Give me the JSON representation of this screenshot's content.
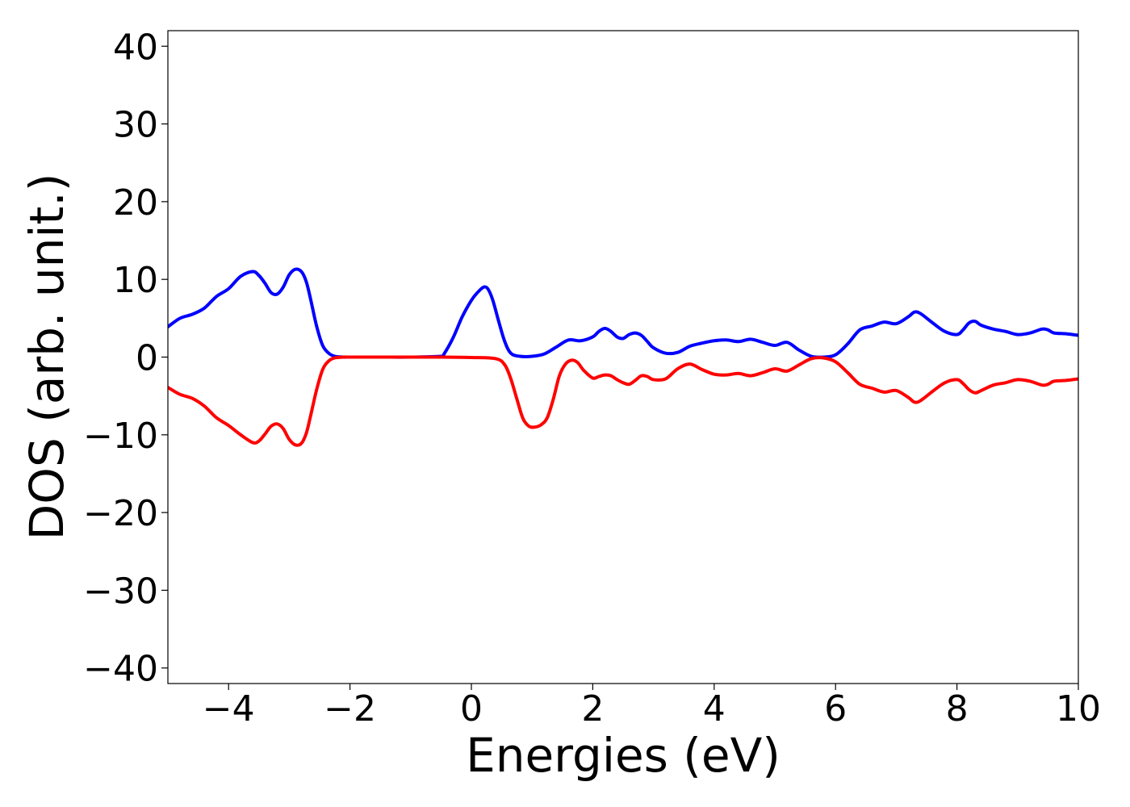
{
  "chart_data": {
    "type": "line",
    "title": "",
    "xlabel": "Energies (eV)",
    "ylabel": "DOS (arb. unit.)",
    "xlim": [
      -5,
      10
    ],
    "ylim": [
      -42,
      42
    ],
    "xticks": [
      -4,
      -2,
      0,
      2,
      4,
      6,
      8,
      10
    ],
    "yticks": [
      -40,
      -30,
      -20,
      -10,
      0,
      10,
      20,
      30,
      40
    ],
    "xtick_labels": [
      "−4",
      "−2",
      "0",
      "2",
      "4",
      "6",
      "8",
      "10"
    ],
    "ytick_labels": [
      "−40",
      "−30",
      "−20",
      "−10",
      "0",
      "10",
      "20",
      "30",
      "40"
    ],
    "grid": false,
    "legend": "none",
    "series": [
      {
        "color": "#0000ff",
        "x": [
          -5.0,
          -4.8,
          -4.6,
          -4.4,
          -4.2,
          -4.0,
          -3.8,
          -3.6,
          -3.5,
          -3.4,
          -3.3,
          -3.2,
          -3.1,
          -3.0,
          -2.9,
          -2.8,
          -2.72,
          -2.65,
          -2.55,
          -2.45,
          -2.35,
          -2.25,
          -2.1,
          -2.0,
          -1.5,
          -1.0,
          -0.5,
          -0.45,
          -0.3,
          -0.15,
          0.0,
          0.1,
          0.2,
          0.27,
          0.35,
          0.45,
          0.55,
          0.65,
          0.8,
          1.0,
          1.2,
          1.4,
          1.6,
          1.8,
          2.0,
          2.1,
          2.2,
          2.3,
          2.4,
          2.5,
          2.6,
          2.7,
          2.8,
          2.9,
          3.0,
          3.2,
          3.4,
          3.6,
          3.8,
          4.0,
          4.2,
          4.4,
          4.6,
          4.8,
          5.0,
          5.2,
          5.4,
          5.6,
          5.8,
          6.0,
          6.2,
          6.4,
          6.6,
          6.8,
          7.0,
          7.2,
          7.3,
          7.4,
          7.6,
          7.8,
          8.0,
          8.1,
          8.2,
          8.3,
          8.4,
          8.6,
          8.8,
          9.0,
          9.2,
          9.4,
          9.5,
          9.6,
          9.8,
          10.0
        ],
        "y": [
          3.9,
          5.0,
          5.5,
          6.3,
          7.8,
          8.8,
          10.4,
          11.0,
          10.5,
          9.5,
          8.3,
          8.1,
          9.0,
          10.6,
          11.3,
          11.0,
          9.7,
          7.5,
          4.0,
          1.5,
          0.5,
          0.1,
          0.0,
          0.0,
          0.0,
          0.0,
          0.1,
          0.4,
          2.5,
          5.2,
          7.3,
          8.3,
          9.0,
          8.8,
          7.4,
          4.6,
          2.0,
          0.5,
          0.1,
          0.1,
          0.4,
          1.3,
          2.2,
          2.1,
          2.6,
          3.3,
          3.7,
          3.3,
          2.6,
          2.4,
          2.9,
          3.1,
          2.8,
          2.0,
          1.2,
          0.5,
          0.6,
          1.4,
          1.8,
          2.1,
          2.2,
          2.0,
          2.3,
          1.9,
          1.5,
          1.9,
          0.9,
          0.1,
          0.0,
          0.3,
          1.7,
          3.5,
          4.0,
          4.5,
          4.3,
          5.2,
          5.8,
          5.6,
          4.4,
          3.3,
          2.9,
          3.5,
          4.4,
          4.6,
          4.1,
          3.6,
          3.3,
          2.9,
          3.1,
          3.6,
          3.5,
          3.1,
          3.0,
          2.8
        ]
      },
      {
        "color": "#ff0000",
        "x": [
          -5.0,
          -4.8,
          -4.6,
          -4.4,
          -4.2,
          -4.0,
          -3.8,
          -3.6,
          -3.5,
          -3.4,
          -3.3,
          -3.2,
          -3.1,
          -3.0,
          -2.9,
          -2.8,
          -2.72,
          -2.65,
          -2.55,
          -2.45,
          -2.35,
          -2.25,
          -2.1,
          -2.0,
          -1.5,
          -1.0,
          -0.5,
          0.0,
          0.4,
          0.55,
          0.65,
          0.75,
          0.85,
          0.95,
          1.05,
          1.15,
          1.25,
          1.35,
          1.45,
          1.55,
          1.65,
          1.75,
          1.85,
          2.0,
          2.1,
          2.2,
          2.3,
          2.4,
          2.5,
          2.6,
          2.7,
          2.8,
          2.9,
          3.0,
          3.2,
          3.4,
          3.6,
          3.8,
          4.0,
          4.2,
          4.4,
          4.6,
          4.8,
          5.0,
          5.2,
          5.4,
          5.6,
          5.8,
          6.0,
          6.2,
          6.4,
          6.6,
          6.8,
          7.0,
          7.2,
          7.3,
          7.4,
          7.6,
          7.8,
          8.0,
          8.1,
          8.2,
          8.3,
          8.4,
          8.6,
          8.8,
          9.0,
          9.2,
          9.4,
          9.5,
          9.6,
          9.8,
          10.0
        ],
        "y": [
          -3.9,
          -4.8,
          -5.3,
          -6.3,
          -7.8,
          -8.8,
          -10.0,
          -11.0,
          -10.8,
          -9.9,
          -8.9,
          -8.6,
          -9.2,
          -10.6,
          -11.3,
          -11.1,
          -9.8,
          -7.6,
          -4.2,
          -1.6,
          -0.5,
          -0.1,
          0.0,
          0.0,
          0.0,
          0.0,
          0.0,
          -0.05,
          -0.2,
          -1.0,
          -2.8,
          -5.4,
          -7.9,
          -8.9,
          -9.0,
          -8.7,
          -7.8,
          -5.4,
          -2.4,
          -0.9,
          -0.4,
          -0.7,
          -1.7,
          -2.7,
          -2.5,
          -2.3,
          -2.4,
          -2.9,
          -3.3,
          -3.5,
          -3.0,
          -2.4,
          -2.5,
          -2.9,
          -2.8,
          -1.5,
          -0.9,
          -1.6,
          -2.2,
          -2.3,
          -2.1,
          -2.4,
          -2.0,
          -1.5,
          -1.8,
          -1.0,
          -0.2,
          -0.1,
          -0.6,
          -2.0,
          -3.5,
          -4.0,
          -4.5,
          -4.3,
          -5.2,
          -5.8,
          -5.6,
          -4.4,
          -3.3,
          -2.9,
          -3.4,
          -4.2,
          -4.6,
          -4.3,
          -3.6,
          -3.3,
          -2.9,
          -3.1,
          -3.6,
          -3.5,
          -3.1,
          -3.0,
          -2.8
        ]
      }
    ]
  }
}
